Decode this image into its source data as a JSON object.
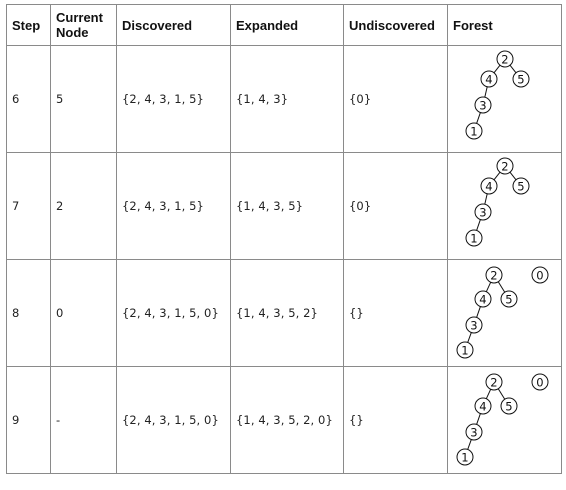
{
  "table": {
    "headers": [
      "Step",
      "Current Node",
      "Discovered",
      "Expanded",
      "Undiscovered",
      "Forest"
    ],
    "rows": [
      {
        "step": "6",
        "current": "5",
        "discovered": "{2, 4, 3, 1, 5}",
        "expanded": "{1, 4, 3}",
        "undiscovered": "{0}",
        "forest": {
          "nodes": [
            "2",
            "4",
            "5",
            "3",
            "1"
          ],
          "edges": [
            [
              "2",
              "4"
            ],
            [
              "2",
              "5"
            ],
            [
              "4",
              "3"
            ],
            [
              "3",
              "1"
            ]
          ]
        }
      },
      {
        "step": "7",
        "current": "2",
        "discovered": "{2, 4, 3, 1, 5}",
        "expanded": "{1, 4, 3, 5}",
        "undiscovered": "{0}",
        "forest": {
          "nodes": [
            "2",
            "4",
            "5",
            "3",
            "1"
          ],
          "edges": [
            [
              "2",
              "4"
            ],
            [
              "2",
              "5"
            ],
            [
              "4",
              "3"
            ],
            [
              "3",
              "1"
            ]
          ]
        }
      },
      {
        "step": "8",
        "current": "0",
        "discovered": "{2, 4, 3, 1, 5, 0}",
        "expanded": "{1, 4, 3, 5, 2}",
        "undiscovered": "{}",
        "forest": {
          "nodes": [
            "2",
            "0",
            "4",
            "5",
            "3",
            "1"
          ],
          "edges": [
            [
              "2",
              "4"
            ],
            [
              "2",
              "5"
            ],
            [
              "4",
              "3"
            ],
            [
              "3",
              "1"
            ]
          ]
        }
      },
      {
        "step": "9",
        "current": "-",
        "discovered": "{2, 4, 3, 1, 5, 0}",
        "expanded": "{1, 4, 3, 5, 2, 0}",
        "undiscovered": "{}",
        "forest": {
          "nodes": [
            "2",
            "0",
            "4",
            "5",
            "3",
            "1"
          ],
          "edges": [
            [
              "2",
              "4"
            ],
            [
              "2",
              "5"
            ],
            [
              "4",
              "3"
            ],
            [
              "3",
              "1"
            ]
          ]
        }
      }
    ]
  }
}
